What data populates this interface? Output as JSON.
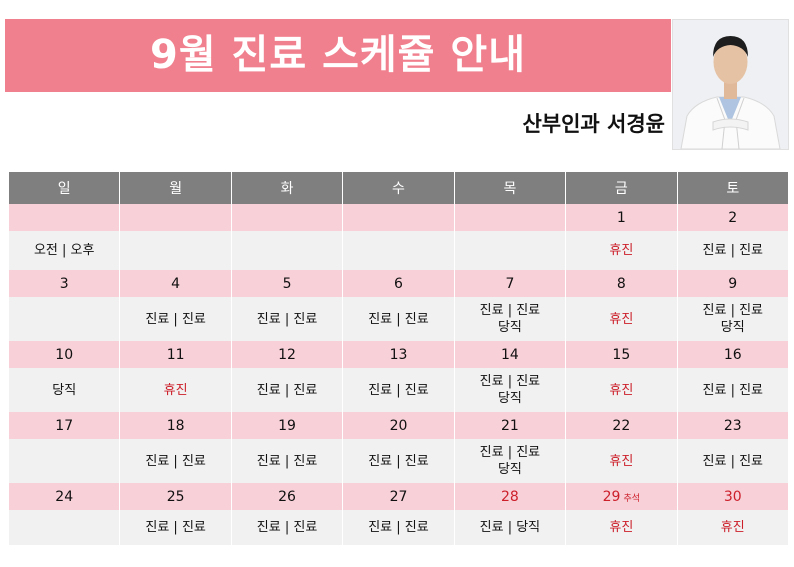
{
  "header": {
    "title": "9월 진료 스케쥴 안내",
    "doctor": "산부인과 서경윤"
  },
  "weekdays": [
    "일",
    "월",
    "화",
    "수",
    "목",
    "금",
    "토"
  ],
  "weeks": [
    {
      "dates": [
        "",
        "",
        "",
        "",
        "",
        "1",
        "2"
      ],
      "cells": [
        [
          "오전 | 오후"
        ],
        [],
        [],
        [],
        [],
        [
          "휴진"
        ],
        [
          "진료 | 진료"
        ]
      ]
    },
    {
      "dates": [
        "3",
        "4",
        "5",
        "6",
        "7",
        "8",
        "9"
      ],
      "cells": [
        [],
        [
          "진료 | 진료"
        ],
        [
          "진료 | 진료"
        ],
        [
          "진료 | 진료"
        ],
        [
          "진료 | 진료",
          "당직"
        ],
        [
          "휴진"
        ],
        [
          "진료 | 진료",
          "당직"
        ]
      ]
    },
    {
      "dates": [
        "10",
        "11",
        "12",
        "13",
        "14",
        "15",
        "16"
      ],
      "cells": [
        [
          "당직"
        ],
        [
          "휴진"
        ],
        [
          "진료 | 진료"
        ],
        [
          "진료 | 진료"
        ],
        [
          "진료 | 진료",
          "당직"
        ],
        [
          "휴진"
        ],
        [
          "진료 | 진료"
        ]
      ]
    },
    {
      "dates": [
        "17",
        "18",
        "19",
        "20",
        "21",
        "22",
        "23"
      ],
      "cells": [
        [],
        [
          "진료 | 진료"
        ],
        [
          "진료 | 진료"
        ],
        [
          "진료 | 진료"
        ],
        [
          "진료 | 진료",
          "당직"
        ],
        [
          "휴진"
        ],
        [
          "진료 | 진료"
        ]
      ]
    },
    {
      "dates": [
        "24",
        "25",
        "26",
        "27",
        "28",
        "29",
        "30"
      ],
      "date_notes": [
        "",
        "",
        "",
        "",
        "",
        "추석",
        ""
      ],
      "cells": [
        [],
        [
          "진료 | 진료"
        ],
        [
          "진료 | 진료"
        ],
        [
          "진료 | 진료"
        ],
        [
          "진료 | 당직"
        ],
        [
          "휴진"
        ],
        [
          "휴진"
        ]
      ]
    }
  ],
  "colors": {
    "banner": "#f1808e",
    "header_row": "#7f7f7f",
    "date_row": "#f8d0d8",
    "content_row": "#f1f1f1",
    "closed_text": "#cc1f2a"
  }
}
